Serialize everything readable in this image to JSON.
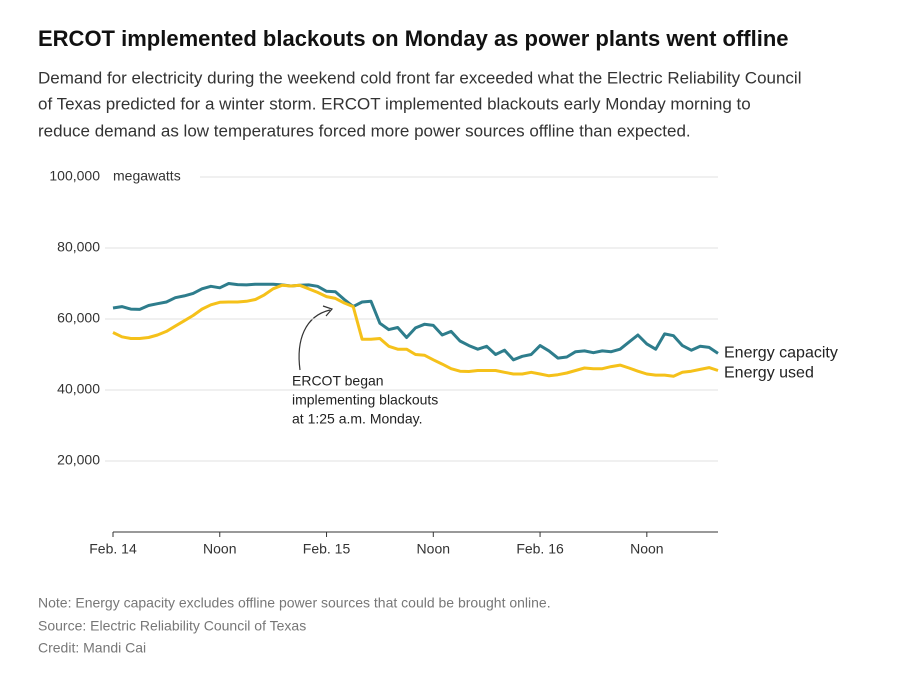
{
  "chart_data": {
    "type": "line",
    "title": "ERCOT implemented blackouts on Monday as power plants went offline",
    "subtitle": [
      "Demand for electricity during the weekend cold front far exceeded what the Electric Reliability Council",
      "of Texas predicted for a winter storm. ERCOT implemented blackouts early Monday morning to",
      "reduce demand as low temperatures forced more power sources offline than expected."
    ],
    "y_unit_label": "megawatts",
    "x": [
      0,
      1,
      2,
      3,
      4,
      5,
      6,
      7,
      8,
      9,
      10,
      11,
      12,
      13,
      14,
      15,
      16,
      17,
      18,
      19,
      20,
      21,
      22,
      23,
      24,
      25,
      26,
      27,
      28,
      29,
      30,
      31,
      32,
      33,
      34,
      35,
      36,
      37,
      38,
      39,
      40,
      41,
      42,
      43,
      44,
      45,
      46,
      47,
      48,
      49,
      50,
      51,
      52,
      53,
      54,
      55,
      56,
      57,
      58,
      59,
      60,
      61,
      62,
      63,
      64,
      65,
      66,
      67,
      68
    ],
    "xlim": [
      0,
      68
    ],
    "xticks": [
      {
        "value": 0,
        "label": "Feb. 14"
      },
      {
        "value": 12,
        "label": "Noon"
      },
      {
        "value": 24,
        "label": "Feb. 15"
      },
      {
        "value": 36,
        "label": "Noon"
      },
      {
        "value": 48,
        "label": "Feb. 16"
      },
      {
        "value": 60,
        "label": "Noon"
      }
    ],
    "ylim": [
      0,
      100000
    ],
    "yticks": [
      {
        "value": 20000,
        "label": "20,000"
      },
      {
        "value": 40000,
        "label": "40,000"
      },
      {
        "value": 60000,
        "label": "60,000"
      },
      {
        "value": 80000,
        "label": "80,000"
      },
      {
        "value": 100000,
        "label": "100,000"
      }
    ],
    "grid": true,
    "series": [
      {
        "name": "Energy capacity",
        "color": "#2e7d8c",
        "values": [
          63100,
          63500,
          62800,
          62700,
          63800,
          64300,
          64800,
          66000,
          66500,
          67200,
          68500,
          69200,
          68800,
          70000,
          69700,
          69600,
          69800,
          69800,
          69800,
          69600,
          69300,
          69500,
          69600,
          69200,
          67800,
          67700,
          65500,
          63500,
          64800,
          65000,
          58800,
          57000,
          57600,
          54800,
          57500,
          58500,
          58200,
          55500,
          56500,
          53800,
          52500,
          51500,
          52300,
          50000,
          51200,
          48500,
          49500,
          50000,
          52500,
          51000,
          49000,
          49300,
          50800,
          51000,
          50500,
          51000,
          50800,
          51500,
          53500,
          55500,
          53000,
          51500,
          55800,
          55300,
          52500,
          51200,
          52300,
          52000,
          50300
        ]
      },
      {
        "name": "Energy used",
        "color": "#f5c11a",
        "values": [
          56200,
          55000,
          54500,
          54500,
          54800,
          55500,
          56500,
          58000,
          59500,
          61000,
          62800,
          64000,
          64700,
          64800,
          64800,
          65000,
          65500,
          66800,
          68500,
          69500,
          69300,
          69500,
          68500,
          67500,
          66300,
          65800,
          64500,
          63500,
          54300,
          54300,
          54500,
          52300,
          51500,
          51500,
          50000,
          49800,
          48500,
          47300,
          46000,
          45300,
          45200,
          45500,
          45500,
          45500,
          45000,
          44500,
          44500,
          45000,
          44500,
          44000,
          44300,
          44800,
          45500,
          46200,
          46000,
          46000,
          46600,
          47000,
          46200,
          45300,
          44500,
          44200,
          44200,
          43900,
          45000,
          45300,
          45800,
          46300,
          45500
        ]
      }
    ],
    "annotation": [
      "ERCOT began",
      "implementing blackouts",
      "at 1:25 a.m. Monday."
    ],
    "footer": [
      "Note: Energy capacity excludes offline power sources that could be brought online.",
      "Source: Electric Reliability Council of Texas",
      "Credit: Mandi Cai"
    ]
  }
}
